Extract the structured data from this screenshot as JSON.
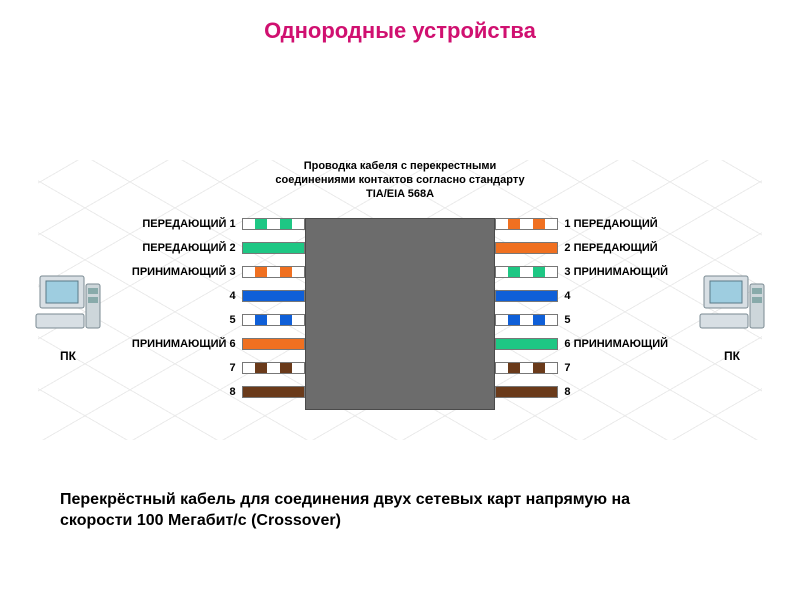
{
  "title": "Однородные устройства",
  "title_color": "#d01070",
  "caption": "Перекрёстный кабель для соединения двух сетевых карт напрямую на скорости 100 Мегабит/с (Crossover)",
  "diagram": {
    "mid_title": "Проводка кабеля с перекрестными соединениями контактов согласно стандарту TIA/EIA 568A",
    "pc_left_label": "ПК",
    "pc_right_label": "ПК",
    "center_box_color": "#6c6c6c",
    "colors": {
      "green": "#1ec784",
      "orange": "#f07020",
      "blue": "#0f5fd8",
      "brown": "#6a3a1a",
      "white": "#ffffff",
      "gray": "#9a9a9a"
    },
    "row_gap": 24,
    "pins": [
      {
        "left_label": "ПЕРЕДАЮЩИЙ 1",
        "right_label": "1 ПЕРЕДАЮЩИЙ",
        "left_segments": [
          "white",
          "green",
          "white",
          "green",
          "white"
        ],
        "right_segments": [
          "white",
          "orange",
          "white",
          "orange",
          "white"
        ]
      },
      {
        "left_label": "ПЕРЕДАЮЩИЙ 2",
        "right_label": "2 ПЕРЕДАЮЩИЙ",
        "left_segments": [
          "green",
          "green",
          "green",
          "green",
          "green"
        ],
        "right_segments": [
          "orange",
          "orange",
          "orange",
          "orange",
          "orange"
        ]
      },
      {
        "left_label": "ПРИНИМАЮЩИЙ 3",
        "right_label": "3 ПРИНИМАЮЩИЙ",
        "left_segments": [
          "white",
          "orange",
          "white",
          "orange",
          "white"
        ],
        "right_segments": [
          "white",
          "green",
          "white",
          "green",
          "white"
        ]
      },
      {
        "left_label": "4",
        "right_label": "4",
        "left_segments": [
          "blue",
          "blue",
          "blue",
          "blue",
          "blue"
        ],
        "right_segments": [
          "blue",
          "blue",
          "blue",
          "blue",
          "blue"
        ]
      },
      {
        "left_label": "5",
        "right_label": "5",
        "left_segments": [
          "white",
          "blue",
          "white",
          "blue",
          "white"
        ],
        "right_segments": [
          "white",
          "blue",
          "white",
          "blue",
          "white"
        ]
      },
      {
        "left_label": "ПРИНИМАЮЩИЙ 6",
        "right_label": "6 ПРИНИМАЮЩИЙ",
        "left_segments": [
          "orange",
          "orange",
          "orange",
          "orange",
          "orange"
        ],
        "right_segments": [
          "green",
          "green",
          "green",
          "green",
          "green"
        ]
      },
      {
        "left_label": "7",
        "right_label": "7",
        "left_segments": [
          "white",
          "brown",
          "white",
          "brown",
          "white"
        ],
        "right_segments": [
          "white",
          "brown",
          "white",
          "brown",
          "white"
        ]
      },
      {
        "left_label": "8",
        "right_label": "8",
        "left_segments": [
          "brown",
          "brown",
          "brown",
          "brown",
          "brown"
        ],
        "right_segments": [
          "brown",
          "brown",
          "brown",
          "brown",
          "brown"
        ]
      }
    ]
  }
}
